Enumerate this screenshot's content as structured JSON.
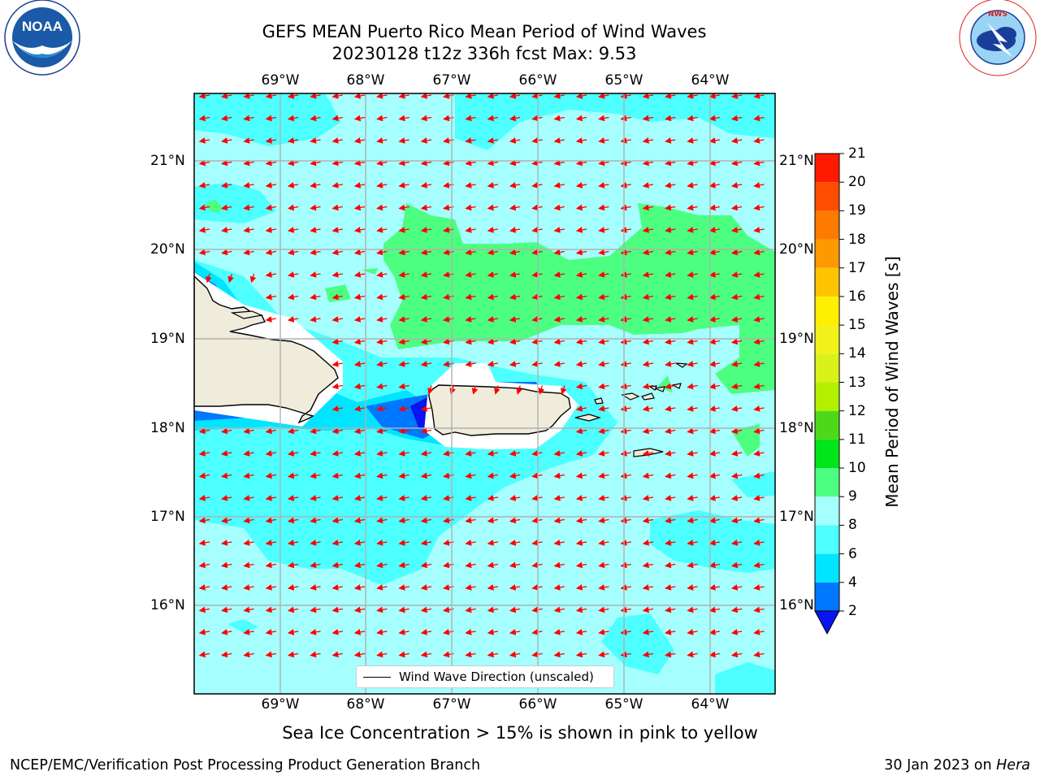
{
  "header": {
    "title_line1": "GEFS MEAN Puerto Rico Mean Period of Wind Waves",
    "title_line2": "20230128 t12z 336h fcst   Max: 9.53"
  },
  "logos": {
    "left": "noao-noaa-logo",
    "left_ring_text": "NATIONAL OCEANIC AND ATMOSPHERIC ADMINISTRATION · U.S. DEPARTMENT OF COMMERCE",
    "left_center_text": "NOAA",
    "right": "national-weather-service-logo",
    "right_ring_text": "NATIONAL WEATHER SERVICE"
  },
  "map": {
    "lon_labels": [
      "69°W",
      "68°W",
      "67°W",
      "66°W",
      "65°W",
      "64°W"
    ],
    "lat_labels": [
      "21°N",
      "20°N",
      "19°N",
      "18°N",
      "17°N",
      "16°N"
    ],
    "legend_label": "Wind Wave Direction (unscaled)",
    "arrow_color": "#ff0000",
    "land_color": "#efecdc"
  },
  "colorbar": {
    "title": "Mean Period of Wind Waves [s]",
    "ticks": [
      "2",
      "4",
      "6",
      "8",
      "9",
      "10",
      "11",
      "12",
      "13",
      "14",
      "15",
      "16",
      "17",
      "18",
      "19",
      "20",
      "21"
    ],
    "bins": [
      {
        "from": 2,
        "to": 4,
        "color": "#0077ff"
      },
      {
        "from": 4,
        "to": 6,
        "color": "#00e5ff"
      },
      {
        "from": 6,
        "to": 8,
        "color": "#4dffff"
      },
      {
        "from": 8,
        "to": 9,
        "color": "#a6ffff"
      },
      {
        "from": 9,
        "to": 10,
        "color": "#4dff80"
      },
      {
        "from": 10,
        "to": 11,
        "color": "#00e51a"
      },
      {
        "from": 11,
        "to": 12,
        "color": "#4dd91a"
      },
      {
        "from": 12,
        "to": 13,
        "color": "#b3f000"
      },
      {
        "from": 13,
        "to": 14,
        "color": "#d9f21a"
      },
      {
        "from": 14,
        "to": 15,
        "color": "#f2f21a"
      },
      {
        "from": 15,
        "to": 16,
        "color": "#ffef00"
      },
      {
        "from": 16,
        "to": 17,
        "color": "#ffc400"
      },
      {
        "from": 17,
        "to": 18,
        "color": "#ff9900"
      },
      {
        "from": 18,
        "to": 19,
        "color": "#ff7a00"
      },
      {
        "from": 19,
        "to": 20,
        "color": "#ff4d00"
      },
      {
        "from": 20,
        "to": 21,
        "color": "#ff1a00"
      }
    ],
    "under_color": "#0a14f0"
  },
  "footer": {
    "caption": "Sea Ice Concentration > 15% is shown in pink to yellow",
    "credit_left": "NCEP/EMC/Verification Post Processing Product Generation Branch",
    "credit_right_date": "30 Jan 2023 on ",
    "credit_right_host": "Hera"
  }
}
